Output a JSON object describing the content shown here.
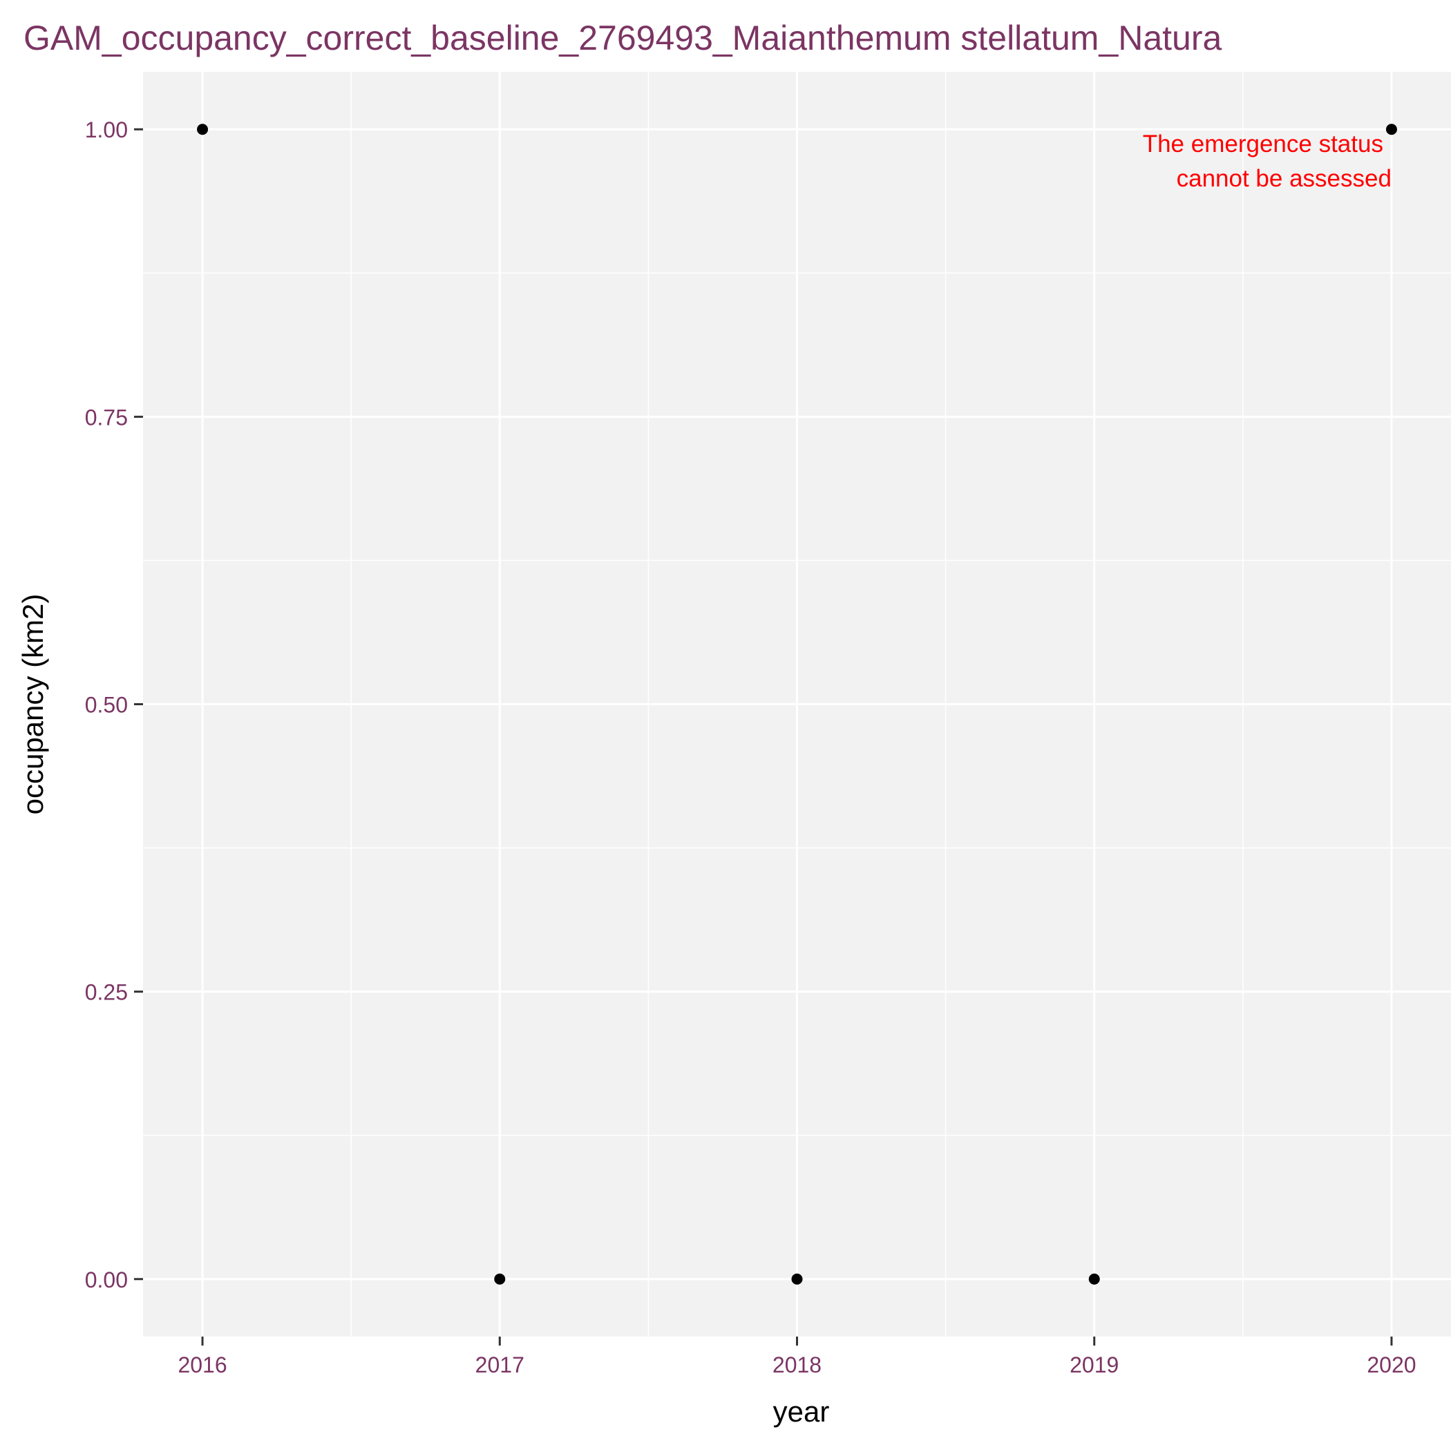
{
  "chart_data": {
    "type": "scatter",
    "title": "GAM_occupancy_correct_baseline_2769493_Maianthemum stellatum_Natura",
    "xlabel": "year",
    "ylabel": "occupancy (km2)",
    "x": [
      2016,
      2017,
      2018,
      2019,
      2020
    ],
    "y": [
      1,
      0,
      0,
      0,
      1
    ],
    "xlim": [
      2015.8,
      2020.2
    ],
    "ylim": [
      -0.05,
      1.05
    ],
    "x_ticks": [
      2016,
      2017,
      2018,
      2019,
      2020
    ],
    "x_tick_labels": [
      "2016",
      "2017",
      "2018",
      "2019",
      "2020"
    ],
    "y_ticks": [
      0,
      0.25,
      0.5,
      0.75,
      1
    ],
    "y_tick_labels": [
      "0.00",
      "0.25",
      "0.50",
      "0.75",
      "1.00"
    ],
    "grid": true,
    "annotation": {
      "lines": [
        "The emergence status",
        "cannot be assessed"
      ],
      "x": 2020,
      "y": 1,
      "color": "#ff0000"
    },
    "colors": {
      "title": "#7b3563",
      "tick_labels": "#7b3563",
      "panel": "#f2f2f2",
      "grid": "#ffffff",
      "points": "#000000"
    }
  }
}
